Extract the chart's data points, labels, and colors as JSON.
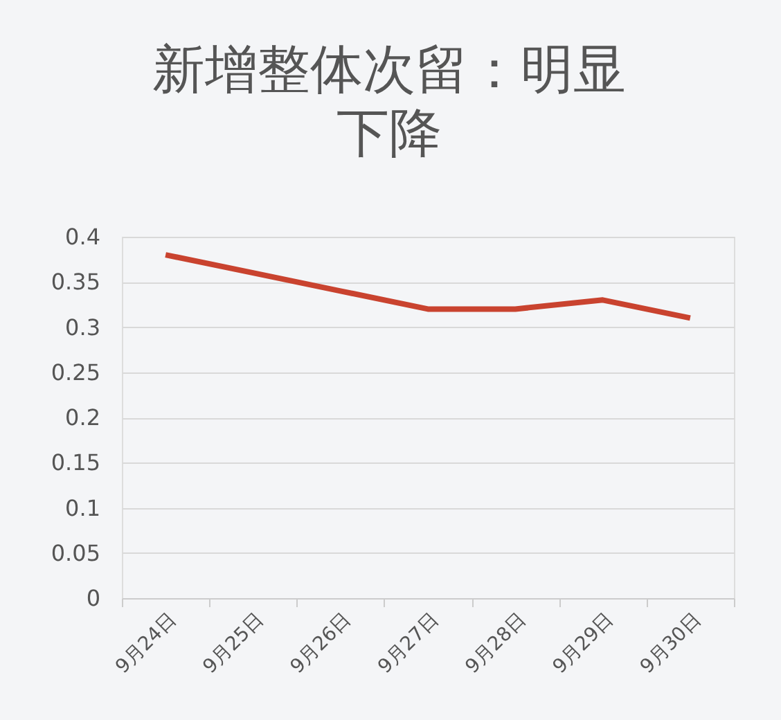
{
  "chart_data": {
    "type": "line",
    "title": "新增整体次留：明显下降",
    "categories": [
      "9月24日",
      "9月25日",
      "9月26日",
      "9月27日",
      "9月28日",
      "9月29日",
      "9月30日"
    ],
    "series": [
      {
        "color": "#c9432f",
        "values": [
          0.38,
          0.36,
          0.34,
          0.32,
          0.32,
          0.33,
          0.31
        ]
      }
    ],
    "ylim": [
      0,
      0.4
    ],
    "yticks": [
      0,
      0.05,
      0.1,
      0.15,
      0.2,
      0.25,
      0.3,
      0.35,
      0.4
    ],
    "grid": "y",
    "marker": "none",
    "line_style": "solid"
  }
}
